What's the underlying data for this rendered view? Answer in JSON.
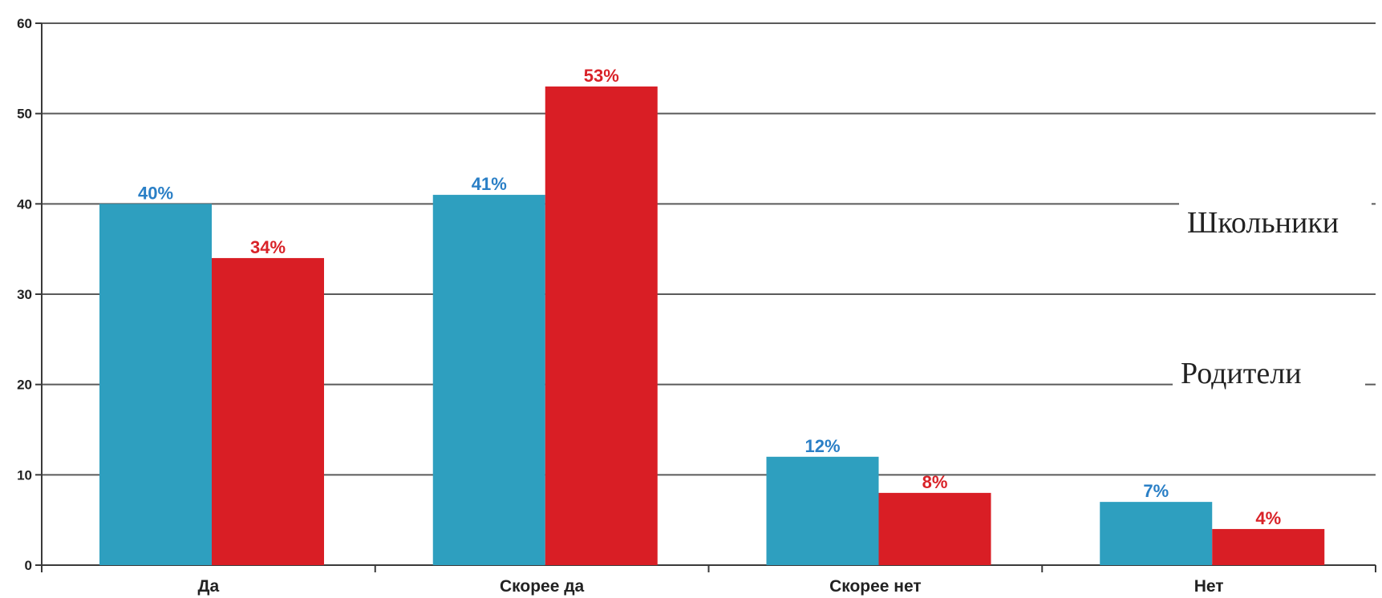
{
  "chart_data": {
    "type": "bar",
    "categories": [
      "Да",
      "Скорее да",
      "Скорее нет",
      "Нет"
    ],
    "series": [
      {
        "name": "Школьники",
        "values": [
          40,
          41,
          12,
          7
        ],
        "labels": [
          "40%",
          "41%",
          "12%",
          "7%"
        ],
        "color": "#2e9fbf",
        "label_color": "#2a7fc6"
      },
      {
        "name": "Родители",
        "values": [
          34,
          53,
          8,
          4
        ],
        "labels": [
          "34%",
          "53%",
          "8%",
          "4%"
        ],
        "color": "#d91e25",
        "label_color": "#d92228"
      }
    ],
    "y_ticks": [
      "0",
      "10",
      "20",
      "30",
      "40",
      "50",
      "60"
    ],
    "ylim": [
      0,
      60
    ],
    "grid": true,
    "legend_position": "right"
  }
}
